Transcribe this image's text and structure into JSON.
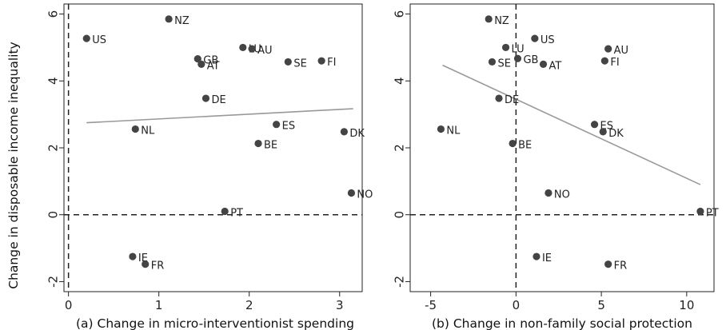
{
  "ylabel": "Change in disposable income inequality",
  "chart_data": [
    {
      "type": "scatter",
      "xlabel": "(a) Change in micro-interventionist spending",
      "ylabel": "Change in disposable income inequality",
      "xlim": [
        -0.05,
        3.25
      ],
      "ylim": [
        -2.3,
        6.3
      ],
      "xticks": [
        0,
        1,
        2,
        3
      ],
      "yticks": [
        -2,
        0,
        2,
        4,
        6
      ],
      "ref_lines": {
        "x": 0,
        "y": 0
      },
      "fit_line": {
        "x": [
          0.2,
          3.15
        ],
        "y": [
          2.75,
          3.17
        ]
      },
      "points": [
        {
          "label": "NZ",
          "x": 1.11,
          "y": 5.85
        },
        {
          "label": "US",
          "x": 0.2,
          "y": 5.27
        },
        {
          "label": "LU",
          "x": 1.93,
          "y": 5.0
        },
        {
          "label": "AU",
          "x": 2.03,
          "y": 4.96
        },
        {
          "label": "GB",
          "x": 1.43,
          "y": 4.66
        },
        {
          "label": "AT",
          "x": 1.47,
          "y": 4.5
        },
        {
          "label": "SE",
          "x": 2.43,
          "y": 4.57
        },
        {
          "label": "FI",
          "x": 2.8,
          "y": 4.6
        },
        {
          "label": "DE",
          "x": 1.52,
          "y": 3.48
        },
        {
          "label": "NL",
          "x": 0.74,
          "y": 2.56
        },
        {
          "label": "ES",
          "x": 2.3,
          "y": 2.7
        },
        {
          "label": "DK",
          "x": 3.05,
          "y": 2.48
        },
        {
          "label": "BE",
          "x": 2.1,
          "y": 2.13
        },
        {
          "label": "NO",
          "x": 3.13,
          "y": 0.65
        },
        {
          "label": "PT",
          "x": 1.73,
          "y": 0.1
        },
        {
          "label": "IE",
          "x": 0.71,
          "y": -1.25
        },
        {
          "label": "FR",
          "x": 0.85,
          "y": -1.48
        }
      ]
    },
    {
      "type": "scatter",
      "xlabel": "(b) Change in non-family social protection",
      "ylabel": "",
      "xlim": [
        -6.2,
        11.6
      ],
      "ylim": [
        -2.3,
        6.3
      ],
      "xticks": [
        -5,
        0,
        5,
        10
      ],
      "yticks": [
        -2,
        0,
        2,
        4,
        6
      ],
      "ref_lines": {
        "x": 0,
        "y": 0
      },
      "fit_line": {
        "x": [
          -4.3,
          10.8
        ],
        "y": [
          4.47,
          0.9
        ]
      },
      "points": [
        {
          "label": "NZ",
          "x": -1.6,
          "y": 5.85
        },
        {
          "label": "US",
          "x": 1.1,
          "y": 5.27
        },
        {
          "label": "LU",
          "x": -0.6,
          "y": 5.0
        },
        {
          "label": "AU",
          "x": 5.4,
          "y": 4.96
        },
        {
          "label": "SE",
          "x": -1.4,
          "y": 4.57
        },
        {
          "label": "GB",
          "x": 0.1,
          "y": 4.67
        },
        {
          "label": "AT",
          "x": 1.6,
          "y": 4.5
        },
        {
          "label": "FI",
          "x": 5.2,
          "y": 4.6
        },
        {
          "label": "DE",
          "x": -1.0,
          "y": 3.48
        },
        {
          "label": "NL",
          "x": -4.4,
          "y": 2.56
        },
        {
          "label": "ES",
          "x": 4.6,
          "y": 2.7
        },
        {
          "label": "DK",
          "x": 5.1,
          "y": 2.48
        },
        {
          "label": "BE",
          "x": -0.2,
          "y": 2.13
        },
        {
          "label": "NO",
          "x": 1.9,
          "y": 0.65
        },
        {
          "label": "PT",
          "x": 10.8,
          "y": 0.1
        },
        {
          "label": "IE",
          "x": 1.2,
          "y": -1.25
        },
        {
          "label": "FR",
          "x": 5.4,
          "y": -1.48
        }
      ]
    }
  ]
}
